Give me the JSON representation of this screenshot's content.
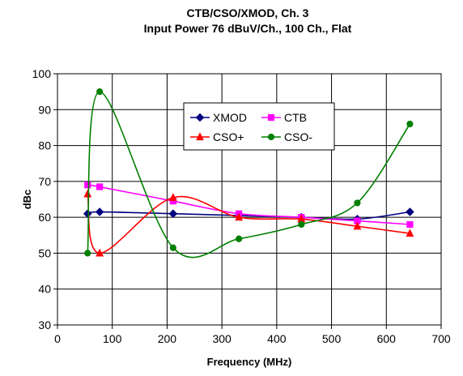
{
  "chart_data": {
    "type": "line",
    "title": "CTB/CSO/XMOD, Ch. 3",
    "subtitle": "Input Power 76 dBuV/Ch., 100 Ch., Flat",
    "xlabel": "Frequency (MHz)",
    "ylabel": "dBc",
    "xlim": [
      0,
      700
    ],
    "ylim": [
      30,
      100
    ],
    "xticks": [
      0,
      100,
      200,
      300,
      400,
      500,
      600,
      700
    ],
    "yticks": [
      30,
      40,
      50,
      60,
      70,
      80,
      90,
      100
    ],
    "grid": true,
    "legend_position": "upper-center-right",
    "series": [
      {
        "name": "XMOD",
        "color": "#000080",
        "marker": "diamond",
        "x": [
          55,
          77,
          211,
          331,
          445,
          547,
          643
        ],
        "y": [
          61,
          61.5,
          61,
          60.5,
          60,
          59.5,
          61.5
        ]
      },
      {
        "name": "CTB",
        "color": "#ff00ff",
        "marker": "square",
        "x": [
          55,
          77,
          211,
          331,
          445,
          547,
          643
        ],
        "y": [
          69,
          68.5,
          64.5,
          61,
          60,
          59,
          58
        ]
      },
      {
        "name": "CSO+",
        "color": "#ff0000",
        "marker": "triangle",
        "x": [
          55,
          77,
          211,
          331,
          445,
          547,
          643
        ],
        "y": [
          66.5,
          50,
          65.5,
          60,
          59.5,
          57.5,
          55.5
        ]
      },
      {
        "name": "CSO-",
        "color": "#008000",
        "marker": "circle",
        "x": [
          55,
          77,
          211,
          331,
          445,
          547,
          643
        ],
        "y": [
          50,
          95,
          51.5,
          54,
          58,
          64,
          86
        ]
      }
    ]
  }
}
